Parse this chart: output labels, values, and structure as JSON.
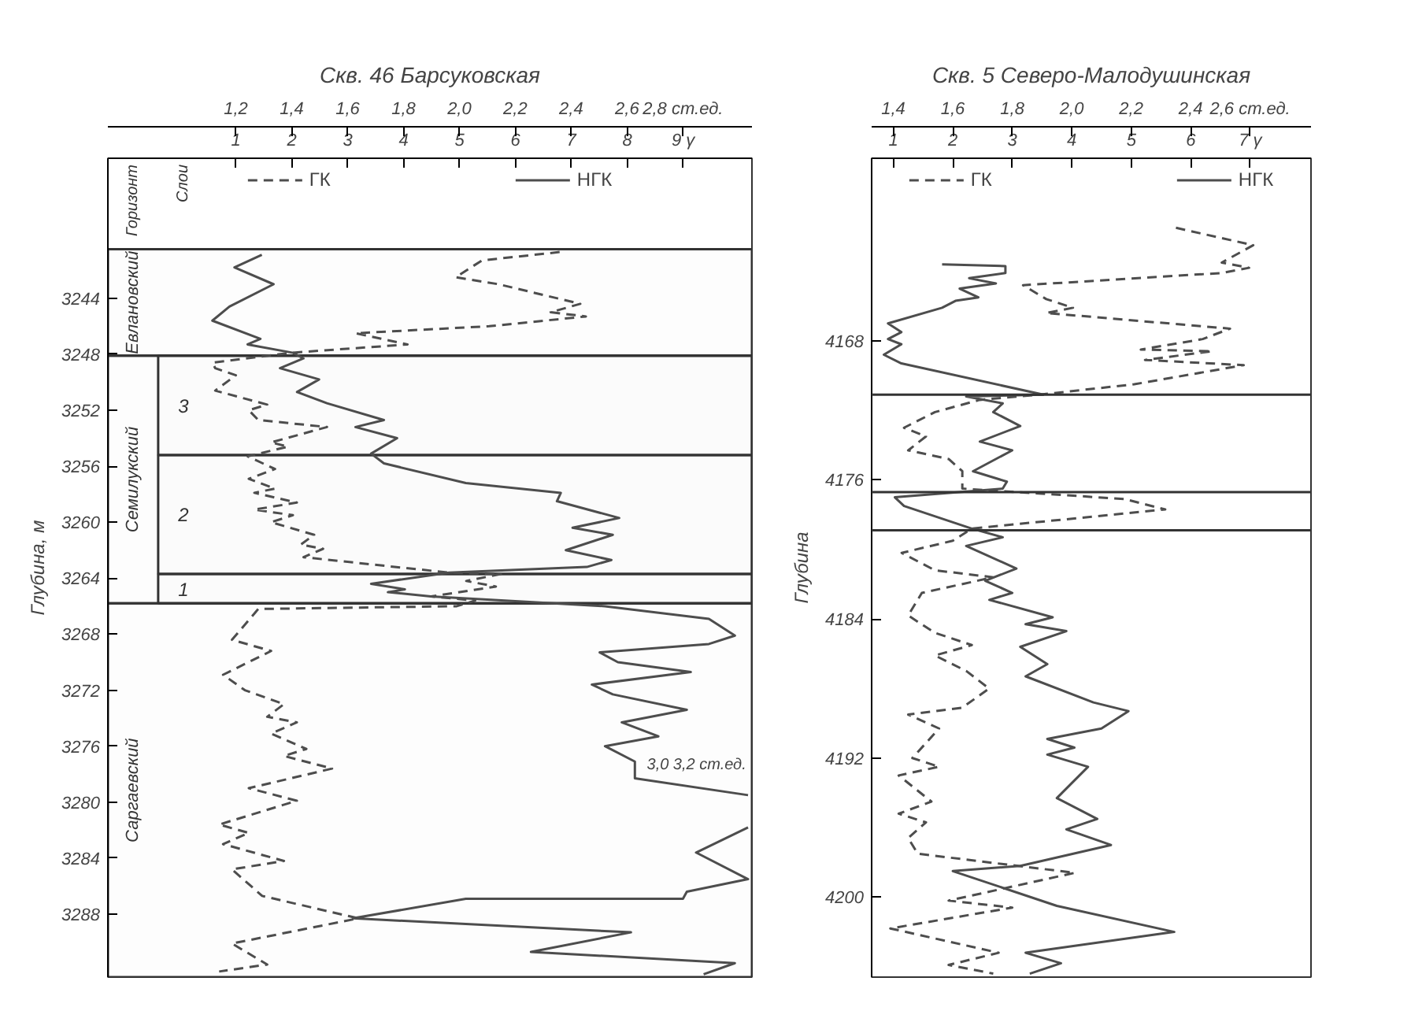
{
  "chart_data": [
    {
      "type": "line",
      "title": "Скв. 46 Барсуковская",
      "ylabel": "Глубина, м",
      "annotations": [
        "Горизонт",
        "Слои",
        {
          "text": "3,0   3,2 ст.ед.",
          "x": 8.35,
          "y": 3278
        }
      ],
      "xlim": [
        -1.29,
        10.23
      ],
      "xticks": [
        1,
        2,
        3,
        4,
        5,
        6,
        7,
        8,
        {
          "value": 9,
          "label": "9 γ"
        }
      ],
      "x2lim": [
        0.742,
        3.047
      ],
      "x2ticks": [
        {
          "value": 1.2,
          "label": "1,2"
        },
        {
          "value": 1.4,
          "label": "1,4"
        },
        {
          "value": 1.6,
          "label": "1,6"
        },
        {
          "value": 1.8,
          "label": "1,8"
        },
        {
          "value": 2.0,
          "label": "2,0"
        },
        {
          "value": 2.2,
          "label": "2,2"
        },
        {
          "value": 2.4,
          "label": "2,4"
        },
        {
          "value": 2.6,
          "label": "2,6"
        },
        {
          "value": 2.8,
          "label": "2,8 ст.ед."
        }
      ],
      "ylim": [
        3292.5,
        3234
      ],
      "yticks": [
        3244,
        3248,
        3252,
        3256,
        3260,
        3264,
        3268,
        3272,
        3276,
        3280,
        3284,
        3288
      ],
      "legend": "top",
      "bands": [
        {
          "axis": "y",
          "from": 3240.5,
          "to": 3248.1,
          "label": "Евлановский"
        },
        {
          "axis": "y",
          "from": 3248.1,
          "to": 3265.8,
          "label": "Семилукский"
        },
        {
          "axis": "y",
          "from": 3265.8,
          "to": 3292.5,
          "label": "Саргаевский"
        },
        {
          "axis": "y",
          "from": 3248.1,
          "to": 3255.2,
          "label": "3"
        },
        {
          "axis": "y",
          "from": 3255.2,
          "to": 3263.7,
          "label": "2"
        },
        {
          "axis": "y",
          "from": 3263.7,
          "to": 3265.8,
          "label": "1"
        }
      ],
      "series": [
        {
          "name": "ГК",
          "color": "#4d4d4d",
          "line_style": "dashed",
          "x": [
            6.79,
            5.4,
            4.93,
            5.7,
            7.16,
            6.63,
            7.26,
            5.53,
            3.14,
            4.07,
            1.98,
            0.58,
            0.63,
            1.0,
            0.63,
            1.56,
            1.23,
            1.4,
            2.63,
            1.63,
            1.93,
            1.21,
            1.7,
            1.23,
            1.7,
            1.33,
            2.09,
            1.33,
            2.02,
            1.63,
            2.4,
            2.16,
            2.56,
            2.21,
            4.81,
            5.74,
            5.12,
            5.65,
            4.49,
            5.28,
            4.95,
            1.4,
            0.93,
            1.63,
            0.77,
            1.16,
            1.86,
            1.56,
            2.09,
            1.63,
            2.26,
            1.86,
            2.72,
            1.23,
            2.09,
            0.7,
            1.23,
            0.77,
            1.86,
            0.93,
            1.47,
            3.19,
            0.93,
            1.56,
            0.7
          ],
          "values": [
            3240.7,
            3241.3,
            3242.5,
            3243.0,
            3244.4,
            3245.0,
            3245.3,
            3246.0,
            3246.5,
            3247.3,
            3247.9,
            3248.6,
            3249.0,
            3249.5,
            3250.6,
            3251.6,
            3252.0,
            3252.7,
            3253.2,
            3254.3,
            3254.6,
            3255.3,
            3256.2,
            3256.9,
            3257.6,
            3257.9,
            3258.6,
            3259.1,
            3259.5,
            3260.0,
            3260.9,
            3261.6,
            3261.9,
            3262.5,
            3263.6,
            3263.7,
            3264.2,
            3264.6,
            3265.3,
            3265.6,
            3266.0,
            3266.2,
            3268.4,
            3269.2,
            3270.9,
            3272.0,
            3273.0,
            3273.9,
            3274.3,
            3275.1,
            3276.2,
            3276.7,
            3277.6,
            3279.0,
            3279.9,
            3281.6,
            3282.2,
            3283.0,
            3284.2,
            3284.8,
            3286.7,
            3288.3,
            3290.1,
            3291.6,
            3292.1
          ]
        },
        {
          "name": "НГК",
          "color": "#4d4d4d",
          "line_style": "solid",
          "axis": "x2",
          "x": [
            1.293,
            1.195,
            1.335,
            1.177,
            1.116,
            1.288,
            1.242,
            1.405,
            1.442,
            1.358,
            1.498,
            1.419,
            1.526,
            1.73,
            1.628,
            1.777,
            1.684,
            1.73,
            2.023,
            2.363,
            2.349,
            2.572,
            2.405,
            2.549,
            2.381,
            2.544,
            2.456,
            1.963,
            1.684,
            1.805,
            1.744,
            1.898,
            2.521,
            2.893,
            2.986,
            2.893,
            2.502,
            2.567,
            2.828,
            2.474,
            2.549,
            2.814,
            2.581,
            2.712,
            2.521,
            2.628,
            2.628,
            3.033,
            null,
            3.033,
            2.847,
            3.033,
            2.814,
            2.8,
            2.023,
            1.619,
            2.614,
            2.256,
            2.986,
            2.874
          ],
          "values": [
            3240.9,
            3241.8,
            3243.0,
            3244.6,
            3245.6,
            3246.9,
            3247.3,
            3247.9,
            3248.3,
            3249.0,
            3249.8,
            3250.7,
            3251.5,
            3252.7,
            3253.2,
            3254.0,
            3255.1,
            3255.8,
            3257.2,
            3257.9,
            3258.5,
            3259.7,
            3260.4,
            3260.9,
            3262.0,
            3262.7,
            3263.2,
            3263.6,
            3264.4,
            3264.8,
            3265.0,
            3265.3,
            3266.0,
            3266.9,
            3268.1,
            3268.7,
            3269.3,
            3270.0,
            3270.7,
            3271.6,
            3272.3,
            3273.4,
            3274.3,
            3275.3,
            3276.0,
            3277.1,
            3278.3,
            3279.5,
            null,
            3281.8,
            3283.6,
            3285.5,
            3286.4,
            3286.9,
            3286.9,
            3288.3,
            3289.3,
            3290.7,
            3291.5,
            3292.3
          ]
        }
      ]
    },
    {
      "type": "line",
      "title": "Скв. 5 Северо-Малодушинская",
      "ylabel": "Глубина",
      "xlim": [
        0.636,
        8.02
      ],
      "xticks": [
        1,
        2,
        3,
        4,
        5,
        6,
        {
          "value": 7,
          "label": "7 γ"
        }
      ],
      "x2lim": [
        1.327,
        2.805
      ],
      "x2ticks": [
        {
          "value": 1.4,
          "label": "1,4"
        },
        {
          "value": 1.6,
          "label": "1,6"
        },
        {
          "value": 1.8,
          "label": "1,8"
        },
        {
          "value": 2.0,
          "label": "2,0"
        },
        {
          "value": 2.2,
          "label": "2,2"
        },
        {
          "value": 2.4,
          "label": "2,4"
        },
        {
          "value": 2.6,
          "label": "2,6 ст.ед."
        }
      ],
      "ylim": [
        4204.6,
        4157.5
      ],
      "yticks": [
        4168,
        4176,
        4184,
        4192,
        4200
      ],
      "legend": "top",
      "ref_lines": [
        {
          "axis": "y",
          "value": 4171.1
        },
        {
          "axis": "y",
          "value": 4176.7
        },
        {
          "axis": "y",
          "value": 4178.9
        }
      ],
      "series": [
        {
          "name": "ГК",
          "color": "#4d4d4d",
          "line_style": "dashed",
          "x": [
            5.75,
            7.05,
            6.52,
            6.98,
            6.52,
            3.18,
            3.57,
            4.02,
            3.57,
            6.66,
            6.2,
            5.16,
            6.36,
            5.23,
            6.89,
            5.05,
            3.45,
            2.45,
            1.7,
            1.18,
            1.55,
            1.25,
            1.93,
            2.16,
            2.16,
            4.89,
            5.57,
            2.32,
            2.0,
            1.14,
            1.7,
            2.68,
            1.48,
            1.25,
            1.7,
            2.32,
            1.7,
            2.23,
            2.61,
            2.16,
            1.25,
            1.77,
            1.32,
            1.77,
            1.09,
            1.64,
            1.09,
            1.55,
            1.25,
            1.41,
            4.05,
            1.93,
            3.0,
            0.95,
            2.77,
            1.93,
            2.68
          ],
          "values": [
            4161.5,
            4162.5,
            4163.5,
            4163.8,
            4164.1,
            4164.8,
            4165.6,
            4166.1,
            4166.4,
            4167.3,
            4167.9,
            4168.5,
            4168.6,
            4169.1,
            4169.4,
            4170.5,
            4171.1,
            4171.4,
            4172.1,
            4173.0,
            4173.5,
            4174.3,
            4174.8,
            4175.5,
            4176.5,
            4177.1,
            4177.7,
            4178.8,
            4179.5,
            4180.2,
            4181.2,
            4181.6,
            4182.5,
            4183.8,
            4184.8,
            4185.5,
            4186.1,
            4187.0,
            4188.0,
            4189.1,
            4189.5,
            4190.3,
            4192.0,
            4192.5,
            4193.0,
            4194.5,
            4195.2,
            4195.7,
            4196.6,
            4197.5,
            4198.6,
            4200.2,
            4200.6,
            4201.8,
            4203.2,
            4203.9,
            4204.4
          ]
        },
        {
          "name": "НГК",
          "color": "#4d4d4d",
          "line_style": "solid",
          "axis": "x2",
          "x": [
            1.564,
            1.777,
            1.777,
            1.655,
            1.745,
            1.623,
            1.686,
            1.609,
            1.564,
            1.382,
            1.427,
            1.382,
            1.427,
            1.368,
            1.427,
            1.905,
            1.645,
            1.768,
            1.736,
            1.827,
            1.691,
            1.8,
            1.668,
            1.782,
            1.768,
            1.405,
            1.436,
            1.664,
            1.768,
            1.645,
            1.814,
            1.709,
            1.8,
            1.723,
            1.936,
            1.845,
            1.982,
            1.827,
            1.918,
            1.845,
            2.073,
            2.191,
            2.1,
            1.918,
            2.009,
            1.918,
            2.055,
            1.95,
            2.086,
            1.982,
            2.132,
            1.827,
            1.6,
            1.95,
            2.345,
            1.845,
            1.964,
            1.859
          ],
          "values": [
            4163.6,
            4163.7,
            4164.1,
            4164.4,
            4164.7,
            4165.0,
            4165.5,
            4165.7,
            4166.1,
            4167.0,
            4167.5,
            4167.9,
            4168.2,
            4168.8,
            4169.3,
            4171.1,
            4171.2,
            4171.6,
            4172.1,
            4172.9,
            4173.8,
            4174.3,
            4175.5,
            4176.1,
            4176.5,
            4177.0,
            4177.5,
            4178.8,
            4179.3,
            4179.8,
            4181.1,
            4181.8,
            4182.5,
            4182.9,
            4183.9,
            4184.3,
            4184.7,
            4185.6,
            4186.6,
            4187.3,
            4188.8,
            4189.3,
            4190.3,
            4190.9,
            4191.4,
            4191.8,
            4192.5,
            4194.3,
            4195.5,
            4196.1,
            4197.0,
            4198.2,
            4198.5,
            4200.5,
            4202.0,
            4203.2,
            4203.8,
            4204.4
          ]
        }
      ]
    }
  ]
}
